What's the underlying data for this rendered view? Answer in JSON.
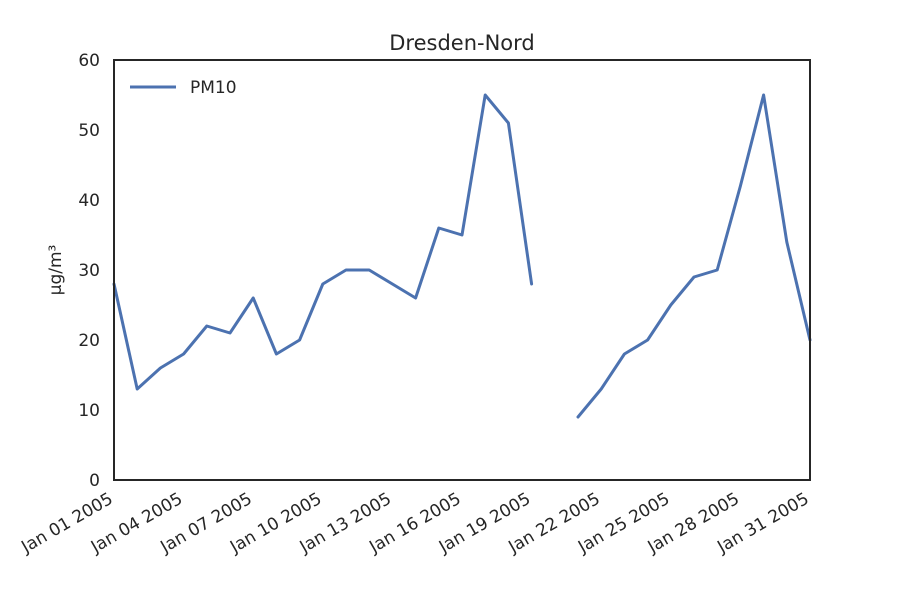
{
  "chart_data": {
    "type": "line",
    "title": "Dresden-Nord",
    "xlabel": "",
    "ylabel": "µg/m³",
    "ylim": [
      0,
      60
    ],
    "xlim": [
      "2005-01-01",
      "2005-01-31"
    ],
    "grid": false,
    "legend": "top-left",
    "yticks": [
      0,
      10,
      20,
      30,
      40,
      50,
      60
    ],
    "xticks": [
      "2005-01-01",
      "2005-01-04",
      "2005-01-07",
      "2005-01-10",
      "2005-01-13",
      "2005-01-16",
      "2005-01-19",
      "2005-01-22",
      "2005-01-25",
      "2005-01-28",
      "2005-01-31"
    ],
    "xtick_labels": [
      "Jan 01 2005",
      "Jan 04 2005",
      "Jan 07 2005",
      "Jan 10 2005",
      "Jan 13 2005",
      "Jan 16 2005",
      "Jan 19 2005",
      "Jan 22 2005",
      "Jan 25 2005",
      "Jan 28 2005",
      "Jan 31 2005"
    ],
    "x": [
      "2005-01-01",
      "2005-01-02",
      "2005-01-03",
      "2005-01-04",
      "2005-01-05",
      "2005-01-06",
      "2005-01-07",
      "2005-01-08",
      "2005-01-09",
      "2005-01-10",
      "2005-01-11",
      "2005-01-12",
      "2005-01-13",
      "2005-01-14",
      "2005-01-15",
      "2005-01-16",
      "2005-01-17",
      "2005-01-18",
      "2005-01-19",
      "2005-01-20",
      "2005-01-21",
      "2005-01-22",
      "2005-01-23",
      "2005-01-24",
      "2005-01-25",
      "2005-01-26",
      "2005-01-27",
      "2005-01-28",
      "2005-01-29",
      "2005-01-30",
      "2005-01-31"
    ],
    "series": [
      {
        "name": "PM10",
        "color": "#4c72b0",
        "values": [
          28,
          13,
          16,
          18,
          22,
          21,
          26,
          18,
          20,
          28,
          30,
          30,
          28,
          26,
          36,
          35,
          55,
          51,
          28,
          null,
          9,
          13,
          18,
          20,
          25,
          29,
          30,
          42,
          55,
          34,
          20
        ]
      }
    ]
  }
}
